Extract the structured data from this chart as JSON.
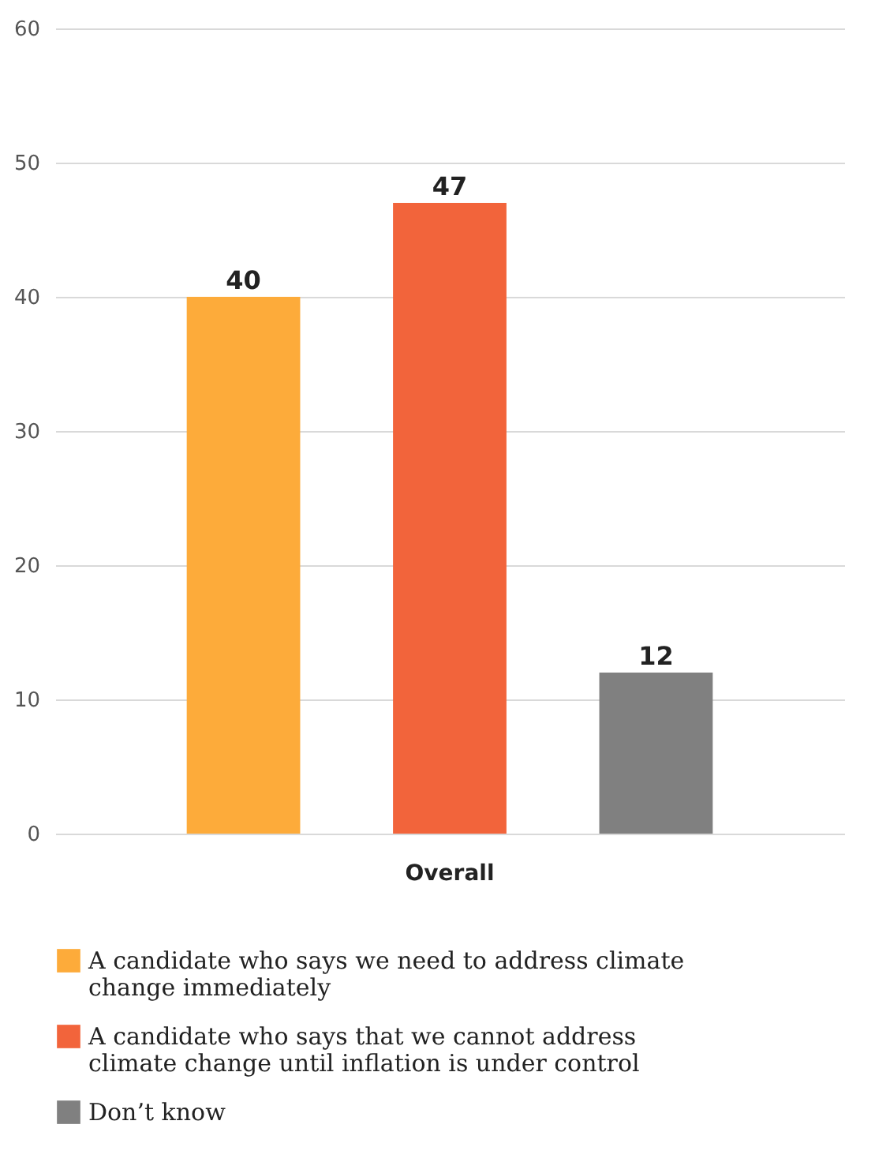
{
  "chart_data": {
    "type": "bar",
    "categories": [
      "Overall"
    ],
    "series": [
      {
        "name": "A candidate who says we need to address climate change immediately",
        "color": "#fdab3a",
        "values": [
          40
        ]
      },
      {
        "name": "A candidate who says that we cannot address climate change until inflation is under control",
        "color": "#f2643b",
        "values": [
          47
        ]
      },
      {
        "name": "Don’t know",
        "color": "#808080",
        "values": [
          12
        ]
      }
    ],
    "ylim": [
      0,
      60
    ],
    "yticks": [
      0,
      10,
      20,
      30,
      40,
      50,
      60
    ],
    "grid": "y",
    "data_labels": true,
    "legend": "bottom"
  }
}
